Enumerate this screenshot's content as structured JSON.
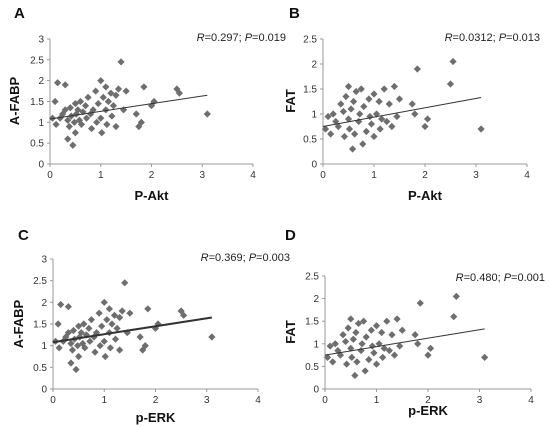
{
  "chart_data": [
    {
      "type": "scatter",
      "letter": "A",
      "stat": {
        "r_label": "R",
        "r_value": "=0.297; ",
        "p_label": "P",
        "p_value": "=0.019"
      },
      "xlabel": "P-Akt",
      "ylabel": "A-FABP",
      "xlim": [
        0,
        4
      ],
      "ylim": [
        0,
        3
      ],
      "xticks": [
        "0",
        "1",
        "2",
        "3",
        "4"
      ],
      "yticks": [
        "0",
        "0.5",
        "1",
        "1.5",
        "2",
        "2.5",
        "3"
      ],
      "trendline": {
        "x": [
          0,
          3.1
        ],
        "y": [
          1.08,
          1.65
        ]
      },
      "points": [
        [
          0.05,
          1.1
        ],
        [
          0.1,
          1.5
        ],
        [
          0.12,
          0.95
        ],
        [
          0.15,
          1.95
        ],
        [
          0.2,
          1.1
        ],
        [
          0.25,
          1.2
        ],
        [
          0.3,
          1.3
        ],
        [
          0.3,
          1.9
        ],
        [
          0.35,
          1.05
        ],
        [
          0.35,
          0.6
        ],
        [
          0.38,
          0.9
        ],
        [
          0.4,
          1.35
        ],
        [
          0.42,
          1.15
        ],
        [
          0.45,
          0.45
        ],
        [
          0.48,
          1.0
        ],
        [
          0.5,
          1.45
        ],
        [
          0.5,
          0.75
        ],
        [
          0.52,
          1.2
        ],
        [
          0.55,
          1.3
        ],
        [
          0.58,
          1.05
        ],
        [
          0.6,
          1.5
        ],
        [
          0.62,
          0.95
        ],
        [
          0.65,
          1.25
        ],
        [
          0.7,
          1.4
        ],
        [
          0.72,
          1.1
        ],
        [
          0.75,
          1.6
        ],
        [
          0.8,
          1.2
        ],
        [
          0.82,
          0.85
        ],
        [
          0.85,
          1.3
        ],
        [
          0.9,
          1.75
        ],
        [
          0.92,
          1.0
        ],
        [
          0.95,
          1.45
        ],
        [
          1.0,
          2.0
        ],
        [
          1.0,
          1.1
        ],
        [
          1.02,
          0.75
        ],
        [
          1.05,
          1.6
        ],
        [
          1.1,
          1.85
        ],
        [
          1.1,
          1.3
        ],
        [
          1.12,
          0.95
        ],
        [
          1.15,
          1.5
        ],
        [
          1.2,
          1.7
        ],
        [
          1.22,
          1.15
        ],
        [
          1.25,
          1.4
        ],
        [
          1.3,
          1.65
        ],
        [
          1.3,
          0.9
        ],
        [
          1.35,
          1.8
        ],
        [
          1.4,
          2.45
        ],
        [
          1.45,
          1.3
        ],
        [
          1.5,
          1.75
        ],
        [
          1.7,
          1.2
        ],
        [
          1.75,
          0.9
        ],
        [
          1.8,
          1.0
        ],
        [
          1.85,
          1.85
        ],
        [
          2.0,
          1.4
        ],
        [
          2.05,
          1.5
        ],
        [
          2.5,
          1.8
        ],
        [
          2.55,
          1.7
        ],
        [
          3.1,
          1.2
        ]
      ]
    },
    {
      "type": "scatter",
      "letter": "B",
      "stat": {
        "r_label": "R",
        "r_value": "=0.0312; ",
        "p_label": "P",
        "p_value": "=0.013"
      },
      "xlabel": "P-Akt",
      "ylabel": "FAT",
      "xlim": [
        0,
        4
      ],
      "ylim": [
        0,
        2.5
      ],
      "xticks": [
        "0",
        "1",
        "2",
        "3",
        "4"
      ],
      "yticks": [
        "0",
        "0.5",
        "1",
        "1.5",
        "2",
        "2.5"
      ],
      "trendline": {
        "x": [
          0,
          3.1
        ],
        "y": [
          0.75,
          1.33
        ]
      },
      "points": [
        [
          0.05,
          0.7
        ],
        [
          0.1,
          0.95
        ],
        [
          0.15,
          0.6
        ],
        [
          0.2,
          1.0
        ],
        [
          0.25,
          0.85
        ],
        [
          0.3,
          0.75
        ],
        [
          0.35,
          1.2
        ],
        [
          0.4,
          1.05
        ],
        [
          0.42,
          0.55
        ],
        [
          0.45,
          1.35
        ],
        [
          0.5,
          0.9
        ],
        [
          0.5,
          1.55
        ],
        [
          0.52,
          0.7
        ],
        [
          0.55,
          1.1
        ],
        [
          0.58,
          0.3
        ],
        [
          0.6,
          1.25
        ],
        [
          0.62,
          0.6
        ],
        [
          0.65,
          1.45
        ],
        [
          0.7,
          0.85
        ],
        [
          0.72,
          1.0
        ],
        [
          0.75,
          1.5
        ],
        [
          0.78,
          0.4
        ],
        [
          0.8,
          1.15
        ],
        [
          0.85,
          0.65
        ],
        [
          0.9,
          1.3
        ],
        [
          0.92,
          0.95
        ],
        [
          0.95,
          0.8
        ],
        [
          1.0,
          1.4
        ],
        [
          1.0,
          0.55
        ],
        [
          1.05,
          1.0
        ],
        [
          1.1,
          1.25
        ],
        [
          1.12,
          0.7
        ],
        [
          1.15,
          0.9
        ],
        [
          1.2,
          1.5
        ],
        [
          1.25,
          0.85
        ],
        [
          1.3,
          1.2
        ],
        [
          1.35,
          0.75
        ],
        [
          1.4,
          1.55
        ],
        [
          1.45,
          0.95
        ],
        [
          1.5,
          1.3
        ],
        [
          1.75,
          1.2
        ],
        [
          1.8,
          1.0
        ],
        [
          1.85,
          1.9
        ],
        [
          2.0,
          0.75
        ],
        [
          2.05,
          0.9
        ],
        [
          2.5,
          1.6
        ],
        [
          2.55,
          2.05
        ],
        [
          3.1,
          0.7
        ]
      ]
    },
    {
      "type": "scatter",
      "letter": "C",
      "stat": {
        "r_label": "R",
        "r_value": "=0.369; ",
        "p_label": "P",
        "p_value": "=0.003"
      },
      "xlabel": "p-ERK",
      "ylabel": "A-FABP",
      "xlim": [
        0,
        4
      ],
      "ylim": [
        0,
        3
      ],
      "xticks": [
        "0",
        "1",
        "2",
        "3",
        "4"
      ],
      "yticks": [
        "0",
        "0.5",
        "1",
        "1.5",
        "2",
        "2.5",
        "3"
      ],
      "trendline": {
        "x": [
          0,
          3.1
        ],
        "y": [
          1.08,
          1.65
        ]
      },
      "points": [
        [
          0.05,
          1.1
        ],
        [
          0.1,
          1.5
        ],
        [
          0.12,
          0.95
        ],
        [
          0.15,
          1.95
        ],
        [
          0.2,
          1.1
        ],
        [
          0.25,
          1.2
        ],
        [
          0.3,
          1.3
        ],
        [
          0.3,
          1.9
        ],
        [
          0.35,
          1.05
        ],
        [
          0.35,
          0.6
        ],
        [
          0.38,
          0.9
        ],
        [
          0.4,
          1.35
        ],
        [
          0.42,
          1.15
        ],
        [
          0.45,
          0.45
        ],
        [
          0.48,
          1.0
        ],
        [
          0.5,
          1.45
        ],
        [
          0.5,
          0.75
        ],
        [
          0.52,
          1.2
        ],
        [
          0.55,
          1.3
        ],
        [
          0.58,
          1.05
        ],
        [
          0.6,
          1.5
        ],
        [
          0.62,
          0.95
        ],
        [
          0.65,
          1.25
        ],
        [
          0.7,
          1.4
        ],
        [
          0.72,
          1.1
        ],
        [
          0.75,
          1.6
        ],
        [
          0.8,
          1.2
        ],
        [
          0.82,
          0.85
        ],
        [
          0.85,
          1.3
        ],
        [
          0.9,
          1.75
        ],
        [
          0.92,
          1.0
        ],
        [
          0.95,
          1.45
        ],
        [
          1.0,
          2.0
        ],
        [
          1.0,
          1.1
        ],
        [
          1.02,
          0.75
        ],
        [
          1.05,
          1.6
        ],
        [
          1.1,
          1.85
        ],
        [
          1.1,
          1.3
        ],
        [
          1.12,
          0.95
        ],
        [
          1.15,
          1.5
        ],
        [
          1.2,
          1.7
        ],
        [
          1.22,
          1.15
        ],
        [
          1.25,
          1.4
        ],
        [
          1.3,
          1.65
        ],
        [
          1.3,
          0.9
        ],
        [
          1.35,
          1.8
        ],
        [
          1.4,
          2.45
        ],
        [
          1.45,
          1.3
        ],
        [
          1.5,
          1.75
        ],
        [
          1.7,
          1.2
        ],
        [
          1.75,
          0.9
        ],
        [
          1.8,
          1.0
        ],
        [
          1.85,
          1.85
        ],
        [
          2.0,
          1.4
        ],
        [
          2.05,
          1.5
        ],
        [
          2.5,
          1.8
        ],
        [
          2.55,
          1.7
        ],
        [
          3.1,
          1.2
        ]
      ]
    },
    {
      "type": "scatter",
      "letter": "D",
      "stat": {
        "r_label": "R",
        "r_value": "=0.480; ",
        "p_label": "P",
        "p_value": "=0.001"
      },
      "xlabel": "p-ERK",
      "ylabel": "FAT",
      "xlim": [
        0,
        4
      ],
      "ylim": [
        0,
        2.5
      ],
      "xticks": [
        "0",
        "1",
        "2",
        "3",
        "4"
      ],
      "yticks": [
        "0",
        "0.5",
        "1",
        "1.5",
        "2",
        "2.5"
      ],
      "trendline": {
        "x": [
          0,
          3.1
        ],
        "y": [
          0.75,
          1.33
        ]
      },
      "points": [
        [
          0.05,
          0.7
        ],
        [
          0.1,
          0.95
        ],
        [
          0.15,
          0.6
        ],
        [
          0.2,
          1.0
        ],
        [
          0.25,
          0.85
        ],
        [
          0.3,
          0.75
        ],
        [
          0.35,
          1.2
        ],
        [
          0.4,
          1.05
        ],
        [
          0.42,
          0.55
        ],
        [
          0.45,
          1.35
        ],
        [
          0.5,
          0.9
        ],
        [
          0.5,
          1.55
        ],
        [
          0.52,
          0.7
        ],
        [
          0.55,
          1.1
        ],
        [
          0.58,
          0.3
        ],
        [
          0.6,
          1.25
        ],
        [
          0.62,
          0.6
        ],
        [
          0.65,
          1.45
        ],
        [
          0.7,
          0.85
        ],
        [
          0.72,
          1.0
        ],
        [
          0.75,
          1.5
        ],
        [
          0.78,
          0.4
        ],
        [
          0.8,
          1.15
        ],
        [
          0.85,
          0.65
        ],
        [
          0.9,
          1.3
        ],
        [
          0.92,
          0.95
        ],
        [
          0.95,
          0.8
        ],
        [
          1.0,
          1.4
        ],
        [
          1.0,
          0.55
        ],
        [
          1.05,
          1.0
        ],
        [
          1.1,
          1.25
        ],
        [
          1.12,
          0.7
        ],
        [
          1.15,
          0.9
        ],
        [
          1.2,
          1.5
        ],
        [
          1.25,
          0.85
        ],
        [
          1.3,
          1.2
        ],
        [
          1.35,
          0.75
        ],
        [
          1.4,
          1.55
        ],
        [
          1.45,
          0.95
        ],
        [
          1.5,
          1.3
        ],
        [
          1.75,
          1.2
        ],
        [
          1.8,
          1.0
        ],
        [
          1.85,
          1.9
        ],
        [
          2.0,
          0.75
        ],
        [
          2.05,
          0.9
        ],
        [
          2.5,
          1.6
        ],
        [
          2.55,
          2.05
        ],
        [
          3.1,
          0.7
        ]
      ]
    }
  ]
}
